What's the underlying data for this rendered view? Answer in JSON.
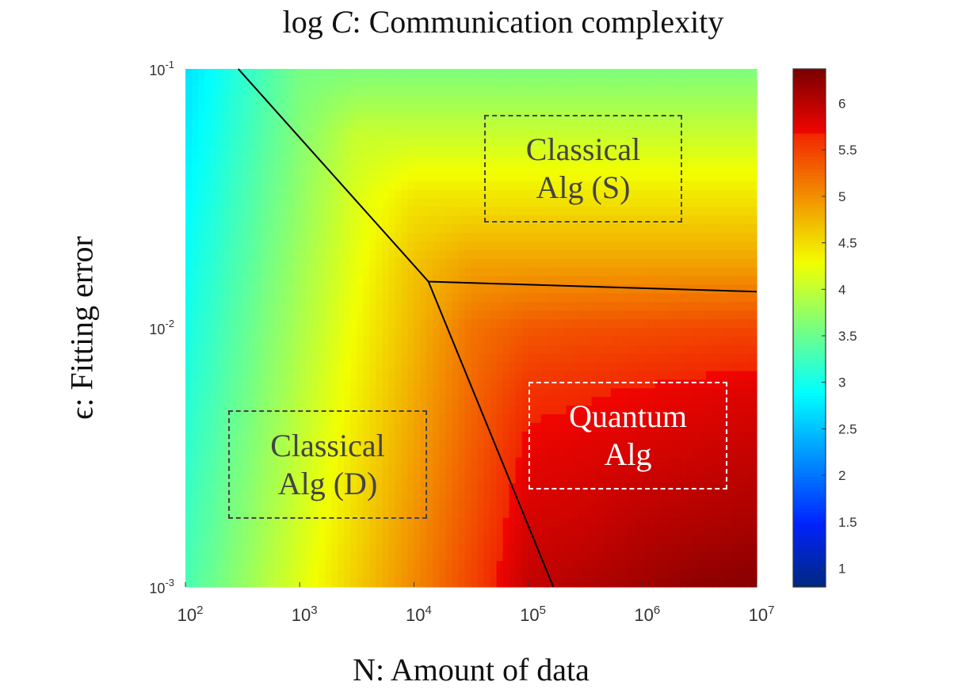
{
  "chart_data": {
    "type": "heatmap",
    "title_prefix": "log",
    "title_var": "C",
    "title_rest": ": Communication complexity",
    "xlabel": "N: Amount of data",
    "ylabel": "ϵ: Fitting error",
    "x_scale": "log",
    "y_scale": "log",
    "xlim": [
      100,
      10000000
    ],
    "ylim": [
      0.001,
      0.1
    ],
    "x_ticks": [
      {
        "base": "10",
        "exp": "2"
      },
      {
        "base": "10",
        "exp": "3"
      },
      {
        "base": "10",
        "exp": "4"
      },
      {
        "base": "10",
        "exp": "5"
      },
      {
        "base": "10",
        "exp": "6"
      },
      {
        "base": "10",
        "exp": "7"
      }
    ],
    "y_ticks": [
      {
        "base": "10",
        "exp": "-1"
      },
      {
        "base": "10",
        "exp": "-2"
      },
      {
        "base": "10",
        "exp": "-3"
      }
    ],
    "colormap": "jet",
    "clim": [
      0.8,
      6.37
    ],
    "colorbar_ticks": [
      "1",
      "1.5",
      "2",
      "2.5",
      "3",
      "3.5",
      "4",
      "4.5",
      "5",
      "5.5",
      "6"
    ],
    "grid": false,
    "grid_x_log10N": [
      2,
      2.5,
      3,
      3.5,
      4,
      4.5,
      5,
      5.5,
      6,
      6.5,
      7
    ],
    "grid_y_log10eps": [
      -1,
      -1.25,
      -1.5,
      -1.75,
      -2,
      -2.25,
      -2.5,
      -2.75,
      -3
    ],
    "values": [
      [
        2.7,
        3.14,
        3.57,
        3.6,
        3.6,
        3.6,
        3.6,
        3.6,
        3.6,
        3.6,
        3.6
      ],
      [
        2.78,
        3.21,
        3.65,
        4.03,
        4.03,
        4.03,
        4.03,
        4.03,
        4.03,
        4.03,
        4.03
      ],
      [
        2.85,
        3.29,
        3.72,
        4.16,
        4.45,
        4.45,
        4.45,
        4.45,
        4.45,
        4.45,
        4.45
      ],
      [
        2.93,
        3.36,
        3.8,
        4.23,
        4.67,
        4.88,
        4.88,
        4.88,
        4.88,
        4.88,
        4.88
      ],
      [
        3.0,
        3.44,
        3.87,
        4.31,
        4.74,
        5.18,
        5.35,
        5.4,
        5.42,
        5.45,
        5.47
      ],
      [
        3.08,
        3.51,
        3.95,
        4.38,
        4.82,
        5.25,
        5.6,
        5.65,
        5.7,
        5.75,
        5.8
      ],
      [
        3.15,
        3.59,
        4.02,
        4.46,
        4.89,
        5.33,
        5.75,
        5.8,
        5.85,
        5.9,
        5.95
      ],
      [
        3.23,
        3.66,
        4.1,
        4.53,
        4.97,
        5.4,
        5.85,
        5.9,
        6.0,
        6.05,
        6.1
      ],
      [
        3.3,
        3.74,
        4.17,
        4.61,
        5.04,
        5.48,
        5.95,
        6.05,
        6.15,
        6.25,
        6.3
      ]
    ],
    "boundaries": [
      {
        "points": [
          [
            290,
            0.1
          ],
          [
            13400,
            0.0151
          ],
          [
            10000000,
            0.0138
          ]
        ]
      },
      {
        "points": [
          [
            13400,
            0.0151
          ],
          [
            166000,
            0.001
          ]
        ]
      }
    ],
    "annotations": [
      {
        "lines": [
          "Classical",
          "Alg (S)"
        ],
        "style": "dashed-dark"
      },
      {
        "lines": [
          "Classical",
          "Alg (D)"
        ],
        "style": "dashed-dark"
      },
      {
        "lines": [
          "Quantum",
          "Alg"
        ],
        "style": "dashed-white"
      }
    ]
  }
}
